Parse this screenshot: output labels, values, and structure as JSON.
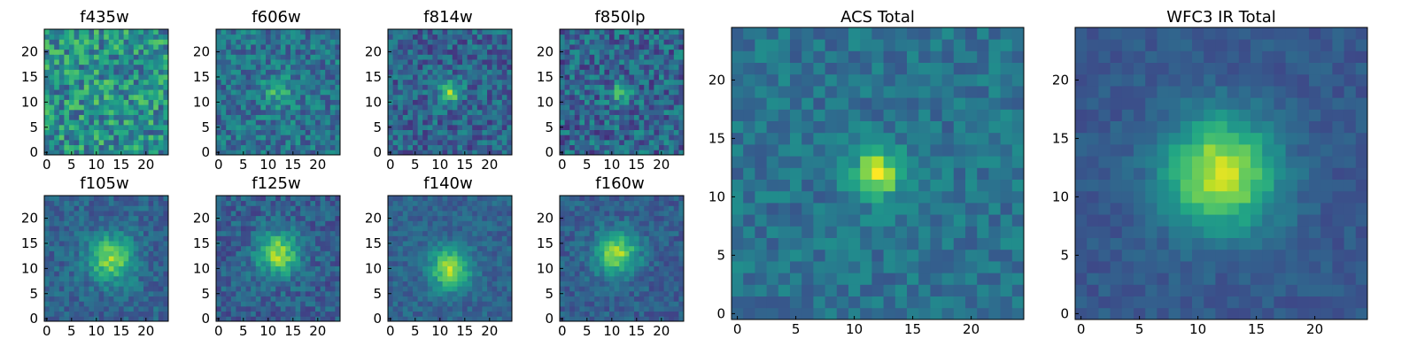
{
  "chart_data": [
    {
      "type": "heatmap",
      "title": "f435w",
      "size": 25,
      "xticks": [
        0,
        5,
        10,
        15,
        20
      ],
      "yticks": [
        0,
        5,
        10,
        15,
        20
      ],
      "xlim": [
        -0.5,
        24.5
      ],
      "ylim": [
        -0.5,
        24.5
      ],
      "grid": false,
      "colormap": "viridis",
      "peak": [
        12,
        12
      ],
      "peak_strength": 0.05,
      "peak_width": 2.5,
      "noise": 0.5,
      "base": 0.5,
      "seed": 11
    },
    {
      "type": "heatmap",
      "title": "f606w",
      "size": 25,
      "xticks": [
        0,
        5,
        10,
        15,
        20
      ],
      "yticks": [
        0,
        5,
        10,
        15,
        20
      ],
      "xlim": [
        -0.5,
        24.5
      ],
      "ylim": [
        -0.5,
        24.5
      ],
      "grid": false,
      "colormap": "viridis",
      "peak": [
        12,
        12
      ],
      "peak_strength": 0.25,
      "peak_width": 2.2,
      "noise": 0.35,
      "base": 0.38,
      "seed": 23
    },
    {
      "type": "heatmap",
      "title": "f814w",
      "size": 25,
      "xticks": [
        0,
        5,
        10,
        15,
        20
      ],
      "yticks": [
        0,
        5,
        10,
        15,
        20
      ],
      "xlim": [
        -0.5,
        24.5
      ],
      "ylim": [
        -0.5,
        24.5
      ],
      "grid": false,
      "colormap": "viridis",
      "peak": [
        12,
        12
      ],
      "peak_strength": 0.45,
      "peak_width": 1.6,
      "noise": 0.35,
      "base": 0.32,
      "seed": 37
    },
    {
      "type": "heatmap",
      "title": "f850lp",
      "size": 25,
      "xticks": [
        0,
        5,
        10,
        15,
        20
      ],
      "yticks": [
        0,
        5,
        10,
        15,
        20
      ],
      "xlim": [
        -0.5,
        24.5
      ],
      "ylim": [
        -0.5,
        24.5
      ],
      "grid": false,
      "colormap": "viridis",
      "peak": [
        12,
        12
      ],
      "peak_strength": 0.3,
      "peak_width": 1.6,
      "noise": 0.4,
      "base": 0.33,
      "seed": 41
    },
    {
      "type": "heatmap",
      "title": "f105w",
      "size": 25,
      "xticks": [
        0,
        5,
        10,
        15,
        20
      ],
      "yticks": [
        0,
        5,
        10,
        15,
        20
      ],
      "xlim": [
        -0.5,
        24.5
      ],
      "ylim": [
        -0.5,
        24.5
      ],
      "grid": false,
      "colormap": "viridis",
      "peak": [
        13,
        12
      ],
      "peak_strength": 0.5,
      "peak_width": 3.2,
      "noise": 0.22,
      "base": 0.32,
      "seed": 53
    },
    {
      "type": "heatmap",
      "title": "f125w",
      "size": 25,
      "xticks": [
        0,
        5,
        10,
        15,
        20
      ],
      "yticks": [
        0,
        5,
        10,
        15,
        20
      ],
      "xlim": [
        -0.5,
        24.5
      ],
      "ylim": [
        -0.5,
        24.5
      ],
      "grid": false,
      "colormap": "viridis",
      "peak": [
        12,
        13
      ],
      "peak_strength": 0.55,
      "peak_width": 3.0,
      "noise": 0.25,
      "base": 0.3,
      "seed": 67
    },
    {
      "type": "heatmap",
      "title": "f140w",
      "size": 25,
      "xticks": [
        0,
        5,
        10,
        15,
        20
      ],
      "yticks": [
        0,
        5,
        10,
        15,
        20
      ],
      "xlim": [
        -0.5,
        24.5
      ],
      "ylim": [
        -0.5,
        24.5
      ],
      "grid": false,
      "colormap": "viridis",
      "peak": [
        12,
        10
      ],
      "peak_strength": 0.55,
      "peak_width": 2.8,
      "noise": 0.18,
      "base": 0.32,
      "seed": 71
    },
    {
      "type": "heatmap",
      "title": "f160w",
      "size": 25,
      "xticks": [
        0,
        5,
        10,
        15,
        20
      ],
      "yticks": [
        0,
        5,
        10,
        15,
        20
      ],
      "xlim": [
        -0.5,
        24.5
      ],
      "ylim": [
        -0.5,
        24.5
      ],
      "grid": false,
      "colormap": "viridis",
      "peak": [
        11,
        13
      ],
      "peak_strength": 0.55,
      "peak_width": 3.0,
      "noise": 0.2,
      "base": 0.3,
      "seed": 83
    },
    {
      "type": "heatmap",
      "title": "ACS Total",
      "size": 25,
      "xticks": [
        0,
        5,
        10,
        15,
        20
      ],
      "yticks": [
        0,
        5,
        10,
        15,
        20
      ],
      "xlim": [
        -0.5,
        24.5
      ],
      "ylim": [
        -0.5,
        24.5
      ],
      "grid": false,
      "colormap": "viridis",
      "peak": [
        12,
        12
      ],
      "peak_strength": 0.55,
      "peak_width": 1.5,
      "noise": 0.22,
      "base": 0.38,
      "seed": 97
    },
    {
      "type": "heatmap",
      "title": "WFC3 IR Total",
      "size": 25,
      "xticks": [
        0,
        5,
        10,
        15,
        20
      ],
      "yticks": [
        0,
        5,
        10,
        15,
        20
      ],
      "xlim": [
        -0.5,
        24.5
      ],
      "ylim": [
        -0.5,
        24.5
      ],
      "grid": false,
      "colormap": "viridis",
      "peak": [
        12,
        12
      ],
      "peak_strength": 0.65,
      "peak_width": 3.3,
      "noise": 0.12,
      "base": 0.28,
      "seed": 101
    }
  ]
}
